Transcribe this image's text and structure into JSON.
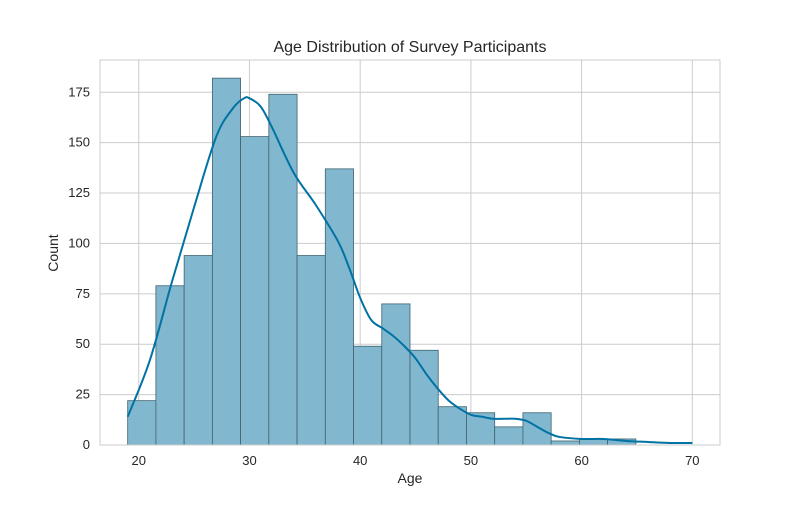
{
  "chart_data": {
    "type": "bar",
    "title": "Age Distribution of Survey Participants",
    "xlabel": "Age",
    "ylabel": "Count",
    "xlim": [
      16.5,
      72.5
    ],
    "ylim": [
      0,
      191
    ],
    "xticks": [
      20,
      30,
      40,
      50,
      60,
      70
    ],
    "yticks": [
      0,
      25,
      50,
      75,
      100,
      125,
      150,
      175
    ],
    "grid": true,
    "bins": [
      {
        "x0": 19.0,
        "x1": 21.55,
        "count": 22
      },
      {
        "x0": 21.55,
        "x1": 24.1,
        "count": 79
      },
      {
        "x0": 24.1,
        "x1": 26.65,
        "count": 94
      },
      {
        "x0": 26.65,
        "x1": 29.2,
        "count": 182
      },
      {
        "x0": 29.2,
        "x1": 31.75,
        "count": 153
      },
      {
        "x0": 31.75,
        "x1": 34.3,
        "count": 174
      },
      {
        "x0": 34.3,
        "x1": 36.85,
        "count": 94
      },
      {
        "x0": 36.85,
        "x1": 39.4,
        "count": 137
      },
      {
        "x0": 39.4,
        "x1": 41.95,
        "count": 49
      },
      {
        "x0": 41.95,
        "x1": 44.5,
        "count": 70
      },
      {
        "x0": 44.5,
        "x1": 47.05,
        "count": 47
      },
      {
        "x0": 47.05,
        "x1": 49.6,
        "count": 19
      },
      {
        "x0": 49.6,
        "x1": 52.15,
        "count": 16
      },
      {
        "x0": 52.15,
        "x1": 54.7,
        "count": 9
      },
      {
        "x0": 54.7,
        "x1": 57.25,
        "count": 16
      },
      {
        "x0": 57.25,
        "x1": 59.8,
        "count": 2
      },
      {
        "x0": 59.8,
        "x1": 62.35,
        "count": 3
      },
      {
        "x0": 62.35,
        "x1": 64.9,
        "count": 3
      },
      {
        "x0": 64.9,
        "x1": 67.45,
        "count": 0
      },
      {
        "x0": 67.45,
        "x1": 70.0,
        "count": 0
      }
    ],
    "kde": {
      "x": [
        19,
        21,
        23,
        25,
        27,
        28.5,
        29.5,
        30,
        31,
        32,
        34,
        36,
        38,
        39,
        40,
        41,
        42,
        43,
        44,
        45,
        46,
        47,
        48,
        49,
        50,
        51,
        52,
        53,
        54,
        55,
        56,
        57,
        58,
        60,
        62,
        64,
        66,
        68,
        70
      ],
      "y": [
        14,
        42,
        81,
        118,
        153,
        167,
        172,
        172,
        168,
        158,
        135,
        119,
        101,
        88,
        73,
        62,
        58,
        54,
        49,
        43,
        35,
        28,
        22,
        18,
        15,
        14,
        13,
        13,
        13,
        12,
        9,
        6,
        4,
        3,
        3,
        2,
        1.5,
        1,
        1
      ]
    },
    "colors": {
      "bar_fill": "#82b8cf",
      "bar_edge": "#40626f",
      "kde_line": "#0072a3",
      "grid": "#cccccc",
      "spine": "#cccccc"
    }
  }
}
